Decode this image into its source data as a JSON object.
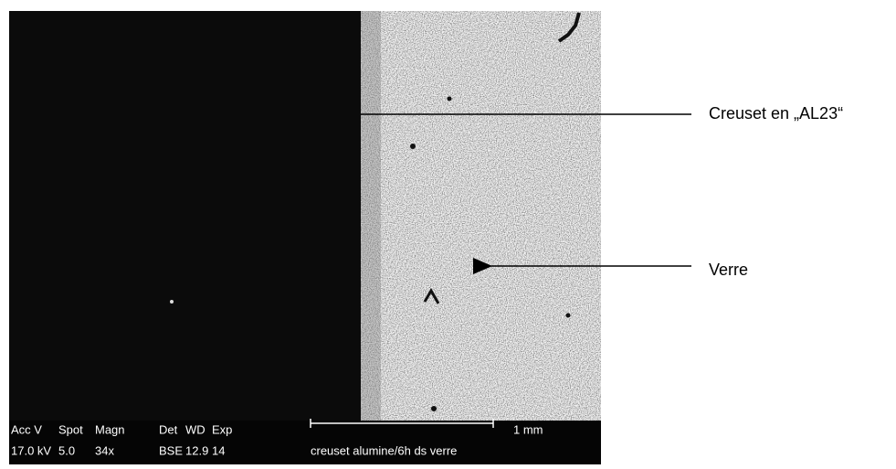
{
  "annotations": [
    {
      "label": "Creuset en „AL23“"
    },
    {
      "label": "Verre"
    }
  ],
  "info_bar": {
    "headers": [
      "Acc V",
      "Spot",
      "Magn",
      "Det",
      "WD",
      "Exp"
    ],
    "values": [
      "17.0 kV",
      "5.0",
      "34x",
      "BSE",
      "12.9",
      "14"
    ],
    "scale_bar": "1 mm",
    "caption": "creuset alumine/6h ds verre"
  }
}
